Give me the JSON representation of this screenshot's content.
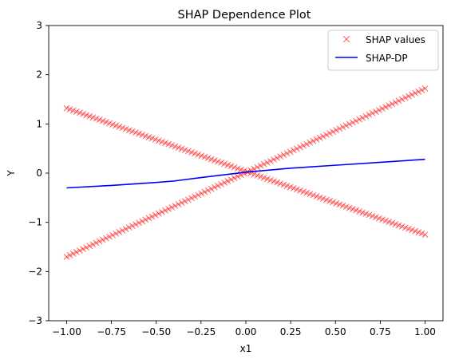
{
  "chart_data": {
    "type": "scatter",
    "title": "SHAP Dependence Plot",
    "xlabel": "x1",
    "ylabel": "Y",
    "xlim": [
      -1.1,
      1.1
    ],
    "ylim": [
      -3,
      3
    ],
    "xticks": [
      -1.0,
      -0.75,
      -0.5,
      -0.25,
      0.0,
      0.25,
      0.5,
      0.75,
      1.0
    ],
    "xtick_labels": [
      "−1.00",
      "−0.75",
      "−0.50",
      "−0.25",
      "0.00",
      "0.25",
      "0.50",
      "0.75",
      "1.00"
    ],
    "yticks": [
      -3,
      -2,
      -1,
      0,
      1,
      2,
      3
    ],
    "ytick_labels": [
      "−3",
      "−2",
      "−1",
      "0",
      "1",
      "2",
      "3"
    ],
    "legend_position": "top-right",
    "grid": false,
    "series": [
      {
        "name": "SHAP values",
        "style": "markers-x",
        "color": "#ff0000",
        "segments": [
          {
            "x": [
              -1.0,
              1.0
            ],
            "y": [
              -1.7,
              1.72
            ]
          },
          {
            "x": [
              -1.0,
              1.0
            ],
            "y": [
              1.32,
              -1.25
            ]
          }
        ],
        "points_per_segment": 110
      },
      {
        "name": "SHAP-DP",
        "style": "line",
        "color": "#0000ff",
        "x": [
          -1.0,
          -0.75,
          -0.5,
          -0.4,
          -0.25,
          0.0,
          0.25,
          0.5,
          0.75,
          1.0
        ],
        "y": [
          -0.3,
          -0.25,
          -0.19,
          -0.16,
          -0.09,
          0.02,
          0.1,
          0.16,
          0.22,
          0.28
        ]
      }
    ]
  }
}
